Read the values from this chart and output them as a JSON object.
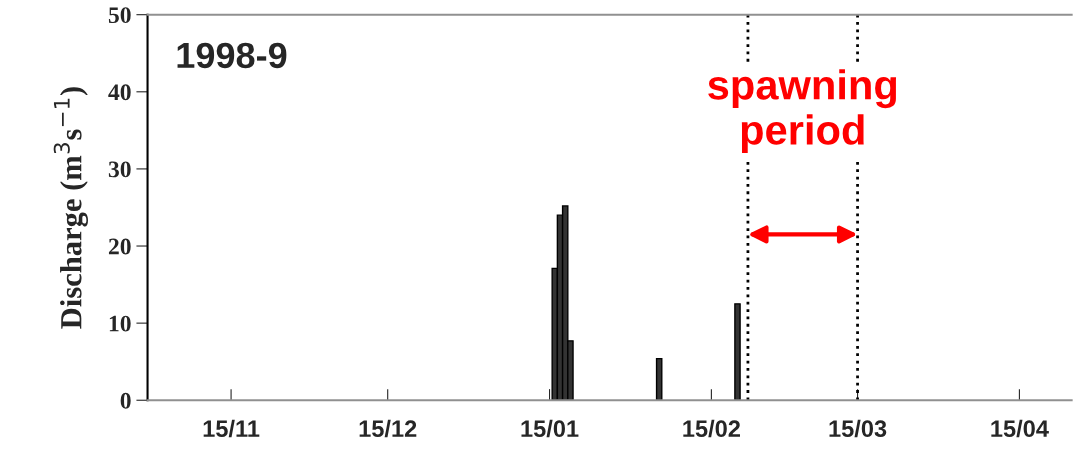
{
  "chart_data": {
    "type": "bar",
    "title": "1998-9",
    "ylabel": "Discharge (m$^{3}$s$^{−1}$)",
    "x": [
      "1999-01-16",
      "1999-01-17",
      "1999-01-18",
      "1999-01-19",
      "1999-02-05",
      "1999-02-20"
    ],
    "values": [
      17.1,
      24,
      25.2,
      7.7,
      5.4,
      12.5
    ],
    "color": "#333333",
    "xlim": [
      "1998-10-30",
      "1999-04-25"
    ],
    "xticks": [
      {
        "value": "1998-11-15",
        "label": "15/11"
      },
      {
        "value": "1998-12-15",
        "label": "15/12"
      },
      {
        "value": "1999-01-15",
        "label": "15/01"
      },
      {
        "value": "1999-02-15",
        "label": "15/02"
      },
      {
        "value": "1999-03-15",
        "label": "15/03"
      },
      {
        "value": "1999-04-15",
        "label": "15/04"
      }
    ],
    "ylim": [
      0,
      50
    ],
    "yticks": [
      0,
      10,
      20,
      30,
      40,
      50
    ],
    "grid": false,
    "legend": false,
    "ref_lines": [
      {
        "axis": "x",
        "value": "1999-02-22",
        "line_style": "dotted",
        "color": "#000000"
      },
      {
        "axis": "x",
        "value": "1999-03-15",
        "line_style": "dotted",
        "color": "#000000"
      }
    ],
    "annotations": [
      "spawning\nperiod"
    ]
  }
}
